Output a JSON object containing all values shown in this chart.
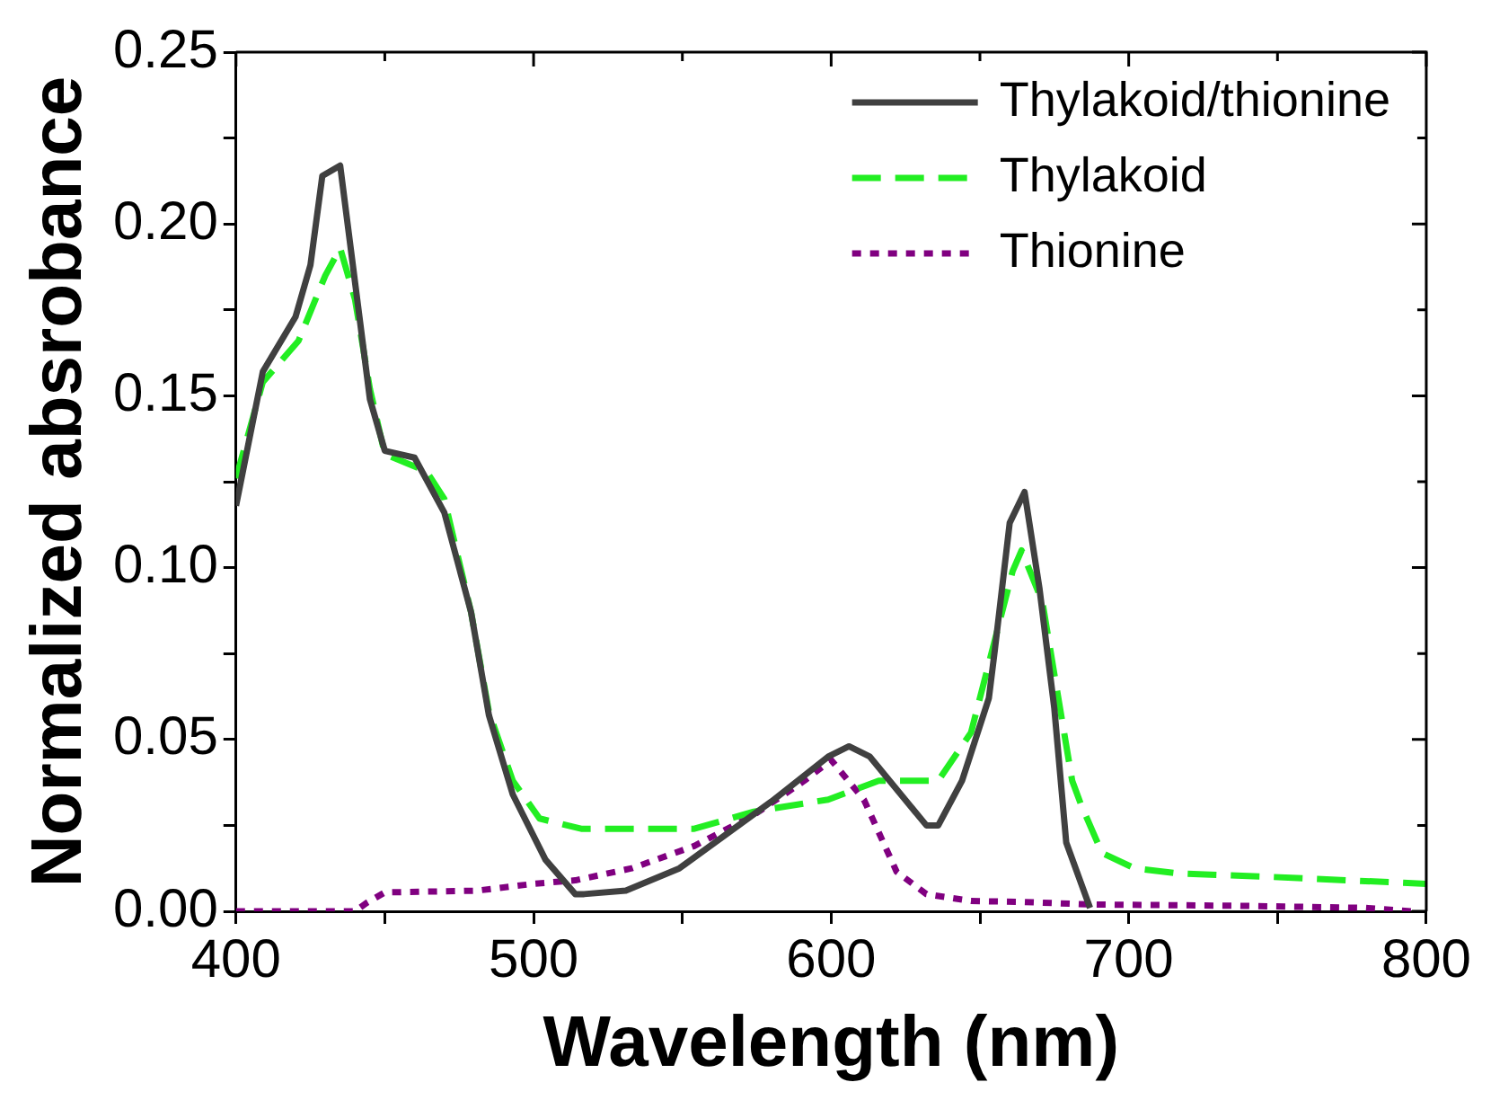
{
  "chart_data": {
    "type": "line",
    "xlabel": "Wavelength (nm)",
    "ylabel": "Normalized absrobance",
    "xlim": [
      400,
      800
    ],
    "ylim": [
      0,
      0.25
    ],
    "xticks": [
      400,
      {
        "value": 450,
        "label": null
      },
      500,
      {
        "value": 550,
        "label": null
      },
      600,
      {
        "value": 650,
        "label": null
      },
      700,
      {
        "value": 750,
        "label": null
      },
      800
    ],
    "yticks": [
      "0.00",
      {
        "value": 0.025,
        "label": null
      },
      {
        "value": 0.05,
        "label": "0.05"
      },
      {
        "value": 0.075,
        "label": null
      },
      {
        "value": 0.1,
        "label": "0.10"
      },
      {
        "value": 0.125,
        "label": null
      },
      {
        "value": 0.15,
        "label": "0.15"
      },
      {
        "value": 0.175,
        "label": null
      },
      {
        "value": 0.2,
        "label": "0.20"
      },
      {
        "value": 0.225,
        "label": null
      },
      {
        "value": 0.25,
        "label": "0.25"
      }
    ],
    "grid": false,
    "legend": "top right",
    "marker": "none",
    "series": [
      {
        "name": "Thylakoid/thionine",
        "color": "#404040",
        "line_style": "solid",
        "x": [
          400,
          409,
          420,
          425,
          429,
          435,
          445,
          450,
          460,
          470,
          479,
          485,
          493,
          504,
          514,
          517,
          531,
          549,
          580,
          599,
          606,
          613,
          632,
          636,
          644,
          653,
          655,
          660,
          665,
          670,
          675,
          679,
          687
        ],
        "values": [
          0.118,
          0.157,
          0.173,
          0.188,
          0.214,
          0.217,
          0.149,
          0.134,
          0.132,
          0.116,
          0.087,
          0.057,
          0.034,
          0.015,
          0.005,
          0.005,
          0.006,
          0.0125,
          0.032,
          0.045,
          0.048,
          0.045,
          0.025,
          0.025,
          0.038,
          0.062,
          0.076,
          0.113,
          0.122,
          0.094,
          0.059,
          0.02,
          0.001
        ]
      },
      {
        "name": "Thylakoid",
        "color": "#22ee22",
        "line_style": "dashed",
        "x": [
          400,
          409,
          421,
          430,
          435,
          440,
          445,
          450,
          464,
          470,
          479,
          485,
          493,
          502,
          516,
          554,
          574,
          599,
          616,
          636,
          647,
          661,
          664,
          671,
          675,
          681,
          684,
          691,
          702,
          717,
          748,
          800
        ],
        "values": [
          0.126,
          0.154,
          0.166,
          0.185,
          0.193,
          0.178,
          0.152,
          0.133,
          0.128,
          0.12,
          0.087,
          0.058,
          0.038,
          0.027,
          0.024,
          0.024,
          0.029,
          0.0325,
          0.038,
          0.038,
          0.052,
          0.099,
          0.105,
          0.09,
          0.069,
          0.038,
          0.031,
          0.017,
          0.0125,
          0.011,
          0.01,
          0.008
        ]
      },
      {
        "name": "Thionine",
        "color": "#800080",
        "line_style": "dotted",
        "x": [
          400,
          440,
          444,
          450,
          481,
          500,
          514,
          533,
          554,
          574,
          591,
          600,
          611,
          622,
          632,
          647,
          665,
          686,
          737,
          779,
          795
        ],
        "values": [
          0,
          0,
          0.0025,
          0.0055,
          0.006,
          0.008,
          0.009,
          0.0125,
          0.019,
          0.028,
          0.038,
          0.044,
          0.0325,
          0.0115,
          0.005,
          0.003,
          0.0027,
          0.002,
          0.0016,
          0.001,
          0
        ]
      }
    ]
  }
}
